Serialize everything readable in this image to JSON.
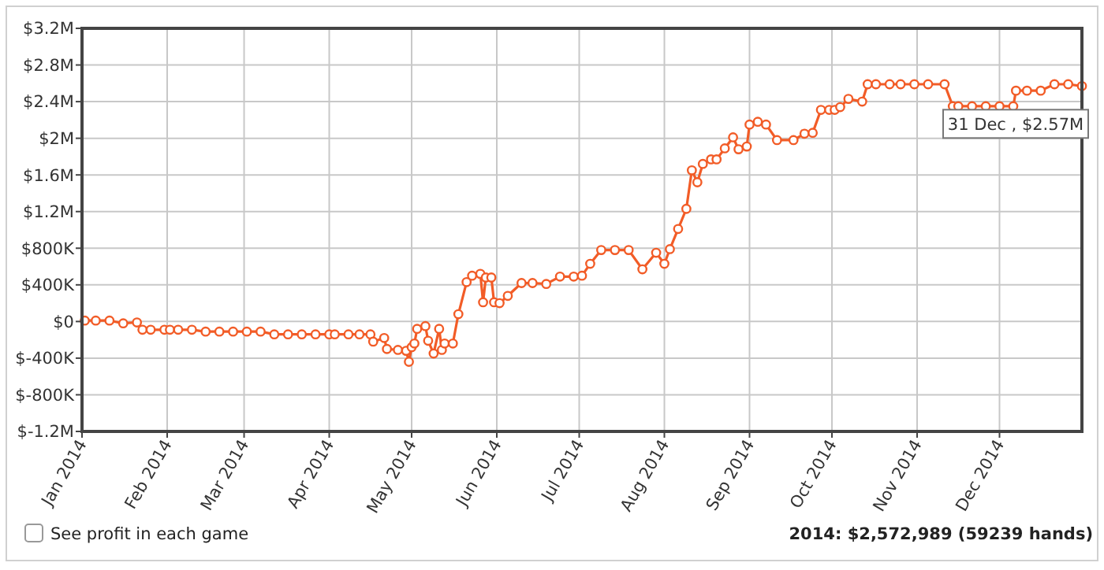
{
  "chart_data": {
    "type": "line",
    "x": [
      "2014-01-02",
      "2014-01-06",
      "2014-01-11",
      "2014-01-16",
      "2014-01-21",
      "2014-01-23",
      "2014-01-26",
      "2014-01-31",
      "2014-02-02",
      "2014-02-05",
      "2014-02-10",
      "2014-02-15",
      "2014-02-20",
      "2014-02-25",
      "2014-03-02",
      "2014-03-07",
      "2014-03-12",
      "2014-03-17",
      "2014-03-22",
      "2014-03-27",
      "2014-04-01",
      "2014-04-03",
      "2014-04-08",
      "2014-04-12",
      "2014-04-16",
      "2014-04-17",
      "2014-04-21",
      "2014-04-22",
      "2014-04-26",
      "2014-04-29",
      "2014-04-30",
      "2014-05-01",
      "2014-05-02",
      "2014-05-03",
      "2014-05-06",
      "2014-05-07",
      "2014-05-09",
      "2014-05-11",
      "2014-05-12",
      "2014-05-13",
      "2014-05-16",
      "2014-05-18",
      "2014-05-21",
      "2014-05-23",
      "2014-05-26",
      "2014-05-27",
      "2014-05-28",
      "2014-05-30",
      "2014-05-31",
      "2014-06-02",
      "2014-06-05",
      "2014-06-10",
      "2014-06-14",
      "2014-06-19",
      "2014-06-24",
      "2014-06-29",
      "2014-07-02",
      "2014-07-05",
      "2014-07-09",
      "2014-07-14",
      "2014-07-19",
      "2014-07-24",
      "2014-07-29",
      "2014-08-01",
      "2014-08-03",
      "2014-08-06",
      "2014-08-09",
      "2014-08-11",
      "2014-08-13",
      "2014-08-15",
      "2014-08-18",
      "2014-08-20",
      "2014-08-23",
      "2014-08-26",
      "2014-08-28",
      "2014-08-31",
      "2014-09-01",
      "2014-09-04",
      "2014-09-07",
      "2014-09-11",
      "2014-09-17",
      "2014-09-21",
      "2014-09-24",
      "2014-09-27",
      "2014-09-30",
      "2014-10-02",
      "2014-10-04",
      "2014-10-07",
      "2014-10-12",
      "2014-10-14",
      "2014-10-17",
      "2014-10-22",
      "2014-10-26",
      "2014-10-31",
      "2014-11-05",
      "2014-11-11",
      "2014-11-14",
      "2014-11-16",
      "2014-11-21",
      "2014-11-26",
      "2014-12-01",
      "2014-12-06",
      "2014-12-07",
      "2014-12-11",
      "2014-12-16",
      "2014-12-21",
      "2014-12-26",
      "2014-12-31"
    ],
    "series": [
      {
        "color": "#f25c27",
        "values": [
          10000,
          10000,
          10000,
          -20000,
          -10000,
          -90000,
          -90000,
          -90000,
          -90000,
          -90000,
          -90000,
          -110000,
          -110000,
          -110000,
          -110000,
          -110000,
          -140000,
          -140000,
          -140000,
          -140000,
          -140000,
          -140000,
          -140000,
          -140000,
          -140000,
          -220000,
          -180000,
          -300000,
          -310000,
          -320000,
          -440000,
          -280000,
          -240000,
          -80000,
          -50000,
          -210000,
          -350000,
          -80000,
          -310000,
          -240000,
          -240000,
          80000,
          430000,
          500000,
          520000,
          210000,
          480000,
          480000,
          210000,
          200000,
          280000,
          420000,
          420000,
          410000,
          490000,
          490000,
          500000,
          630000,
          780000,
          780000,
          780000,
          570000,
          750000,
          630000,
          790000,
          1010000,
          1230000,
          1650000,
          1520000,
          1720000,
          1770000,
          1770000,
          1890000,
          2010000,
          1880000,
          1910000,
          2150000,
          2180000,
          2150000,
          1980000,
          1980000,
          2050000,
          2060000,
          2310000,
          2310000,
          2310000,
          2340000,
          2430000,
          2400000,
          2590000,
          2590000,
          2590000,
          2590000,
          2590000,
          2590000,
          2590000,
          2350000,
          2350000,
          2350000,
          2350000,
          2350000,
          2350000,
          2520000,
          2520000,
          2520000,
          2590000,
          2590000,
          2570000
        ]
      }
    ],
    "xlim": [
      "2014-01-01",
      "2014-12-31"
    ],
    "xticks": [
      {
        "value": "2014-01-01",
        "label": "Jan 2014"
      },
      {
        "value": "2014-02-01",
        "label": "Feb 2014"
      },
      {
        "value": "2014-03-01",
        "label": "Mar 2014"
      },
      {
        "value": "2014-04-01",
        "label": "Apr 2014"
      },
      {
        "value": "2014-05-01",
        "label": "May 2014"
      },
      {
        "value": "2014-06-01",
        "label": "Jun 2014"
      },
      {
        "value": "2014-07-01",
        "label": "Jul 2014"
      },
      {
        "value": "2014-08-01",
        "label": "Aug 2014"
      },
      {
        "value": "2014-09-01",
        "label": "Sep 2014"
      },
      {
        "value": "2014-10-01",
        "label": "Oct 2014"
      },
      {
        "value": "2014-11-01",
        "label": "Nov 2014"
      },
      {
        "value": "2014-12-01",
        "label": "Dec 2014"
      }
    ],
    "ylim": [
      -1200000,
      3200000
    ],
    "yticks": [
      {
        "value": -1200000,
        "label": "$-1.2M"
      },
      {
        "value": -800000,
        "label": "$-800K"
      },
      {
        "value": -400000,
        "label": "$-400K"
      },
      {
        "value": 0,
        "label": "$0"
      },
      {
        "value": 400000,
        "label": "$400K"
      },
      {
        "value": 800000,
        "label": "$800K"
      },
      {
        "value": 1200000,
        "label": "$1.2M"
      },
      {
        "value": 1600000,
        "label": "$1.6M"
      },
      {
        "value": 2000000,
        "label": "$2M"
      },
      {
        "value": 2400000,
        "label": "$2.4M"
      },
      {
        "value": 2800000,
        "label": "$2.8M"
      },
      {
        "value": 3200000,
        "label": "$3.2M"
      }
    ],
    "grid": true,
    "marker": "circle",
    "line_style": "solid",
    "annotations": [
      {
        "text": "31 Dec , $2.57M",
        "x": "2014-12-31",
        "y": 2570000
      },
      "See profit in each game",
      "2014: $2,572,989 (59239 hands)"
    ]
  }
}
